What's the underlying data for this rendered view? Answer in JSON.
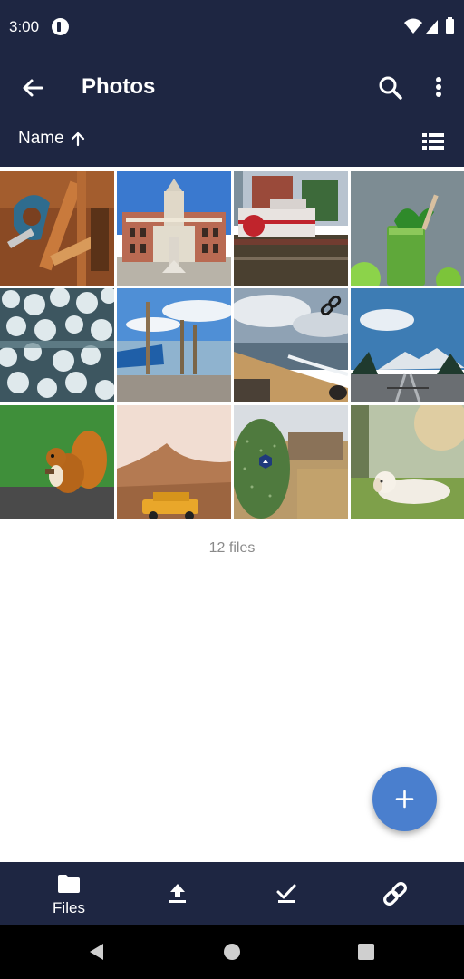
{
  "status_bar": {
    "time": "3:00"
  },
  "app_bar": {
    "title": "Photos",
    "sort_label": "Name",
    "sort_direction_icon": "arrow-up-icon"
  },
  "grid": {
    "items": [
      {
        "subject": "tools"
      },
      {
        "subject": "town-hall"
      },
      {
        "subject": "paddle-steamer"
      },
      {
        "subject": "green-smoothie"
      },
      {
        "subject": "snowy-forest"
      },
      {
        "subject": "boat-on-lake"
      },
      {
        "subject": "beach",
        "shared": true
      },
      {
        "subject": "mountain-railway"
      },
      {
        "subject": "squirrel"
      },
      {
        "subject": "desert-jeep"
      },
      {
        "subject": "cactus"
      },
      {
        "subject": "dog-on-grass"
      }
    ]
  },
  "footer": {
    "file_count": "12 files"
  },
  "fab": {
    "icon": "plus-icon"
  },
  "bottom_nav": {
    "items": [
      {
        "label": "Files",
        "icon": "folder-icon",
        "active": true
      },
      {
        "icon": "upload-icon"
      },
      {
        "icon": "check-icon"
      },
      {
        "icon": "link-icon"
      }
    ]
  },
  "colors": {
    "bar": "#1e2642",
    "accent": "#4a7fce"
  }
}
